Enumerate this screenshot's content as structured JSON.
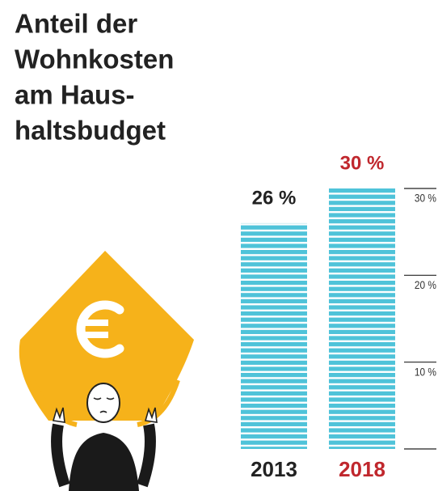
{
  "chart_data": {
    "type": "bar",
    "title": [
      "Anteil der",
      "Wohnkosten",
      "am Haus-",
      "haltsbudget"
    ],
    "categories": [
      "2013",
      "2018"
    ],
    "values": [
      26,
      30
    ],
    "value_labels": [
      "26 %",
      "30 %"
    ],
    "label_colors": [
      "#222222",
      "#c0272d"
    ],
    "color": "#4fc3d9",
    "ylim": [
      0,
      30
    ],
    "yticks": [
      {
        "value": 10,
        "label": "10 %"
      },
      {
        "value": 20,
        "label": "20 %"
      },
      {
        "value": 30,
        "label": "30 %"
      }
    ],
    "grid": true
  }
}
